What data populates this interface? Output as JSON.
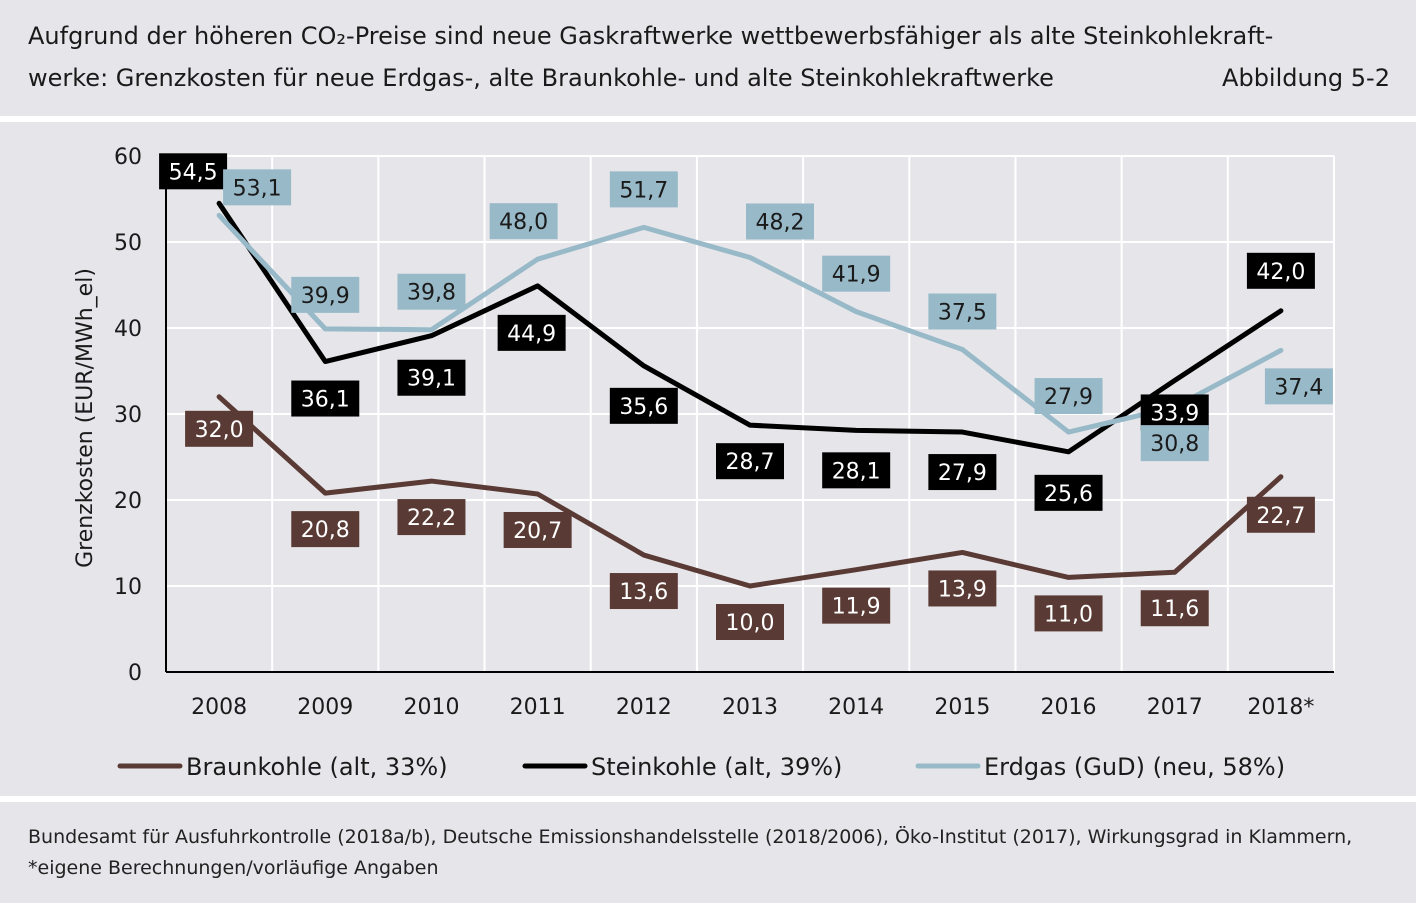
{
  "header": {
    "title_line1": "Aufgrund der höheren CO₂-Preise sind neue Gaskraftwerke wettbewerbsfähiger als alte Steinkohlekraft-",
    "title_line2": "werke: Grenzkosten für neue Erdgas-, alte Braunkohle- und alte Steinkohlekraftwerke",
    "figure_label": "Abbildung 5-2"
  },
  "footer": {
    "source_line1": "Bundesamt für Ausfuhrkontrolle (2018a/b), Deutsche Emissionshandelsstelle (2018/2006), Öko-Institut (2017), Wirkungsgrad in Klammern,",
    "source_line2": "*eigene Berechnungen/vorläufige Angaben"
  },
  "chart_data": {
    "type": "line",
    "title": "",
    "xlabel": "",
    "ylabel": "Grenzkosten (EUR/MWh_el)",
    "ylim": [
      0,
      60
    ],
    "yticks": [
      0,
      10,
      20,
      30,
      40,
      50,
      60
    ],
    "grid": true,
    "legend_position": "bottom",
    "categories": [
      "2008",
      "2009",
      "2010",
      "2011",
      "2012",
      "2013",
      "2014",
      "2015",
      "2016",
      "2017",
      "2018*"
    ],
    "series": [
      {
        "name": "Braunkohle (alt, 33%)",
        "color": "#5a3a34",
        "label_text_color": "#ffffff",
        "values": [
          32.0,
          20.8,
          22.2,
          20.7,
          13.6,
          10.0,
          11.9,
          13.9,
          11.0,
          11.6,
          22.7
        ],
        "labels": [
          "32,0",
          "20,8",
          "22,2",
          "20,7",
          "13,6",
          "10,0",
          "11,9",
          "13,9",
          "11,0",
          "11,6",
          "22,7"
        ]
      },
      {
        "name": "Steinkohle (alt, 39%)",
        "color": "#000000",
        "label_text_color": "#ffffff",
        "values": [
          54.5,
          36.1,
          39.1,
          44.9,
          35.6,
          28.7,
          28.1,
          27.9,
          25.6,
          33.9,
          42.0
        ],
        "labels": [
          "54,5",
          "36,1",
          "39,1",
          "44,9",
          "35,6",
          "28,7",
          "28,1",
          "27,9",
          "25,6",
          "33,9",
          "42,0"
        ]
      },
      {
        "name": "Erdgas (GuD) (neu, 58%)",
        "color": "#98b9c8",
        "label_text_color": "#1a1a1a",
        "values": [
          53.1,
          39.9,
          39.8,
          48.0,
          51.7,
          48.2,
          41.9,
          37.5,
          27.9,
          30.8,
          37.4
        ],
        "labels": [
          "53,1",
          "39,9",
          "39,8",
          "48,0",
          "51,7",
          "48,2",
          "41,9",
          "37,5",
          "27,9",
          "30,8",
          "37,4"
        ]
      }
    ]
  }
}
